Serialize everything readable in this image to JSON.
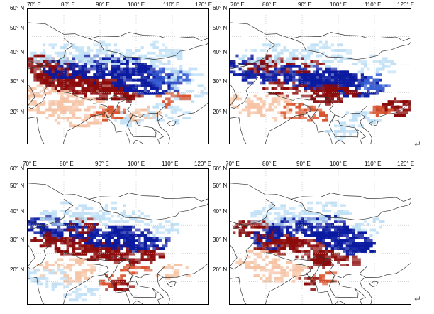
{
  "figure": {
    "lon_labels": [
      "70° E",
      "80° E",
      "90° E",
      "100° E",
      "110° E",
      "120° E"
    ],
    "lat_labels": [
      "60° N",
      "50° N",
      "40° N",
      "30° N",
      "20° N"
    ],
    "extent": {
      "lon_min": 70,
      "lon_max": 120,
      "lat_min": 12,
      "lat_max": 60
    },
    "colors": {
      "strong_positive": "#8b0a0a",
      "positive": "#d9542e",
      "weak_positive": "#f6c3a4",
      "strong_negative": "#0a1aa0",
      "negative": "#3a62d6",
      "weak_negative": "#bfe0f6",
      "coastline": "#333333",
      "grid": "#bdbdbd"
    },
    "return_symbol": "↵"
  },
  "panels": [
    {
      "id": "a",
      "label": "top-left"
    },
    {
      "id": "b",
      "label": "top-right"
    },
    {
      "id": "c",
      "label": "bottom-left"
    },
    {
      "id": "d",
      "label": "bottom-right"
    }
  ]
}
